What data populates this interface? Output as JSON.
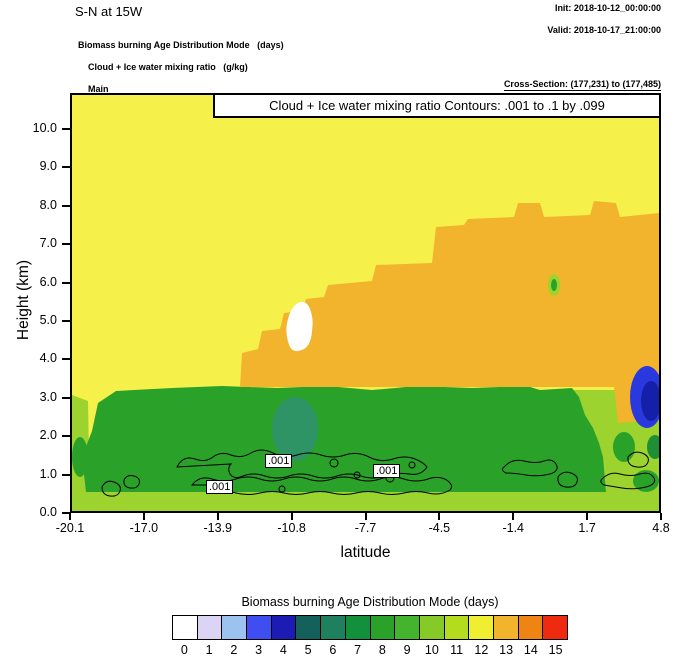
{
  "header": {
    "title": "S-N at 15W",
    "init_label": "Init: 2018-10-12_00:00:00",
    "valid_label": "Valid: 2018-10-17_21:00:00",
    "field_line_1": "Biomass burning Age Distribution Mode   (days)",
    "field_line_2": "Cloud + Ice water mixing ratio   (g/kg)",
    "field_line_3": "Main",
    "cross_section": "Cross-Section: (177,231) to (177,485)"
  },
  "plot": {
    "inner_title": "Cloud + Ice water mixing ratio Contours: .001 to .1 by .099",
    "xlabel": "latitude",
    "ylabel": "Height (km)",
    "x_ticks": [
      "-20.1",
      "-17.0",
      "-13.9",
      "-10.8",
      "-7.7",
      "-4.5",
      "-1.4",
      "1.7",
      "4.8"
    ],
    "y_ticks": [
      "10.0",
      "9.0",
      "8.0",
      "7.0",
      "6.0",
      "5.0",
      "4.0",
      "3.0",
      "2.0",
      "1.0",
      "0.0"
    ],
    "contour_labels": [
      ".001",
      ".001",
      ".001"
    ]
  },
  "colorbar": {
    "title": "Biomass burning Age Distribution Mode  (days)",
    "ticks": [
      "0",
      "1",
      "2",
      "3",
      "4",
      "5",
      "6",
      "7",
      "8",
      "9",
      "10",
      "11",
      "12",
      "13",
      "14",
      "15"
    ],
    "colors": [
      "#ffffff",
      "#dcd4f4",
      "#9cc2f0",
      "#3e4ef0",
      "#1c1cb4",
      "#14605a",
      "#1f8060",
      "#12903c",
      "#2aa22a",
      "#44b42e",
      "#86ca28",
      "#b4dc1e",
      "#f0ee30",
      "#f2b42c",
      "#ee8414",
      "#ee2a10"
    ]
  },
  "chart_data": {
    "type": "heatmap",
    "title": "Cloud + Ice water mixing ratio Contours: .001 to .1 by .099",
    "xlabel": "latitude",
    "ylabel": "Height (km)",
    "xlim": [
      -20.1,
      4.8
    ],
    "ylim": [
      0.0,
      10.9
    ],
    "x_ticks": [
      -20.1,
      -17.0,
      -13.9,
      -10.8,
      -7.7,
      -4.5,
      -1.4,
      1.7,
      4.8
    ],
    "y_ticks": [
      0.0,
      1.0,
      2.0,
      3.0,
      4.0,
      5.0,
      6.0,
      7.0,
      8.0,
      9.0,
      10.0
    ],
    "grid": false,
    "fill_variable": "Biomass burning Age Distribution Mode (days)",
    "fill_levels": [
      0,
      1,
      2,
      3,
      4,
      5,
      6,
      7,
      8,
      9,
      10,
      11,
      12,
      13,
      14,
      15
    ],
    "contour_variable": "Cloud + Ice water mixing ratio (g/kg)",
    "contour_levels": [
      0.001,
      0.1
    ],
    "regions": [
      {
        "value_days": 12,
        "color": "#f6f14a",
        "desc": "yellow background covering most of domain above 3.2 km and left of lat -12"
      },
      {
        "value_days": 13,
        "color": "#f2b42c",
        "desc": "orange aged plume, lat -12.5 to 4.8, from 3.3 km up to 6.5-8 km with stepped top"
      },
      {
        "value_days": 8,
        "color": "#2aa22a",
        "desc": "green boundary-layer band, lat -19.5 to 1.5, 0.5 to 3.2 km"
      },
      {
        "value_days": 10,
        "color": "#9cd32e",
        "desc": "light green surface layer 0 to 0.6 km across domain and lower-right corner below 3 km"
      },
      {
        "value_days": 6,
        "color": "#2f9465",
        "desc": "teal patch near lat -10.8, 1.3 to 2.9 km"
      },
      {
        "value_days": 4,
        "color": "#2a39dd",
        "desc": "dark blue patch at right edge, lat 4.1 to 4.8, 2.2 to 3.6 km, navy core"
      },
      {
        "value_days": 0,
        "color": "#ffffff",
        "desc": "white patch near lat -10.6, 4.2 to 5.4 km"
      }
    ],
    "contour_label_positions": [
      {
        "label": ".001",
        "lat": -11.3,
        "km": 1.1
      },
      {
        "label": ".001",
        "lat": -6.9,
        "km": 0.9
      },
      {
        "label": ".001",
        "lat": -13.6,
        "km": 0.5
      }
    ],
    "colorbar": {
      "title": "Biomass burning Age Distribution Mode  (days)",
      "tick_labels": [
        0,
        1,
        2,
        3,
        4,
        5,
        6,
        7,
        8,
        9,
        10,
        11,
        12,
        13,
        14,
        15
      ],
      "colors": [
        "#ffffff",
        "#dcd4f4",
        "#9cc2f0",
        "#3e4ef0",
        "#1c1cb4",
        "#14605a",
        "#1f8060",
        "#12903c",
        "#2aa22a",
        "#44b42e",
        "#86ca28",
        "#b4dc1e",
        "#f0ee30",
        "#f2b42c",
        "#ee8414",
        "#ee2a10"
      ],
      "position": "bottom"
    }
  }
}
